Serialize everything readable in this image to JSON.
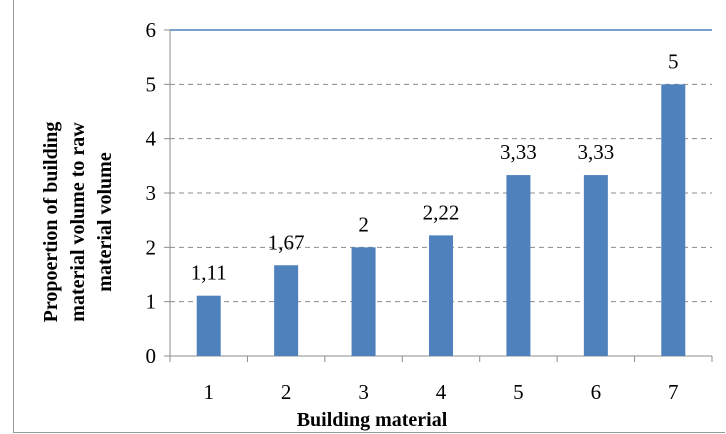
{
  "chart_data": {
    "type": "bar",
    "categories": [
      "1",
      "2",
      "3",
      "4",
      "5",
      "6",
      "7"
    ],
    "values": [
      1.11,
      1.67,
      2,
      2.22,
      3.33,
      3.33,
      5
    ],
    "data_labels": [
      "1,11",
      "1,67",
      "2",
      "2,22",
      "3,33",
      "3,33",
      "5"
    ],
    "y_ticks": [
      "0",
      "1",
      "2",
      "3",
      "4",
      "5",
      "6"
    ],
    "xlabel": "Building material",
    "ylabel": "Propoertion of building material volume to raw material volume",
    "ylabel_lines": [
      "Propoertion of building",
      "material volume to raw",
      "material volume"
    ],
    "ylim": [
      0,
      6
    ],
    "grid": true,
    "bar_color": "#4f81bd",
    "legend": "none"
  }
}
